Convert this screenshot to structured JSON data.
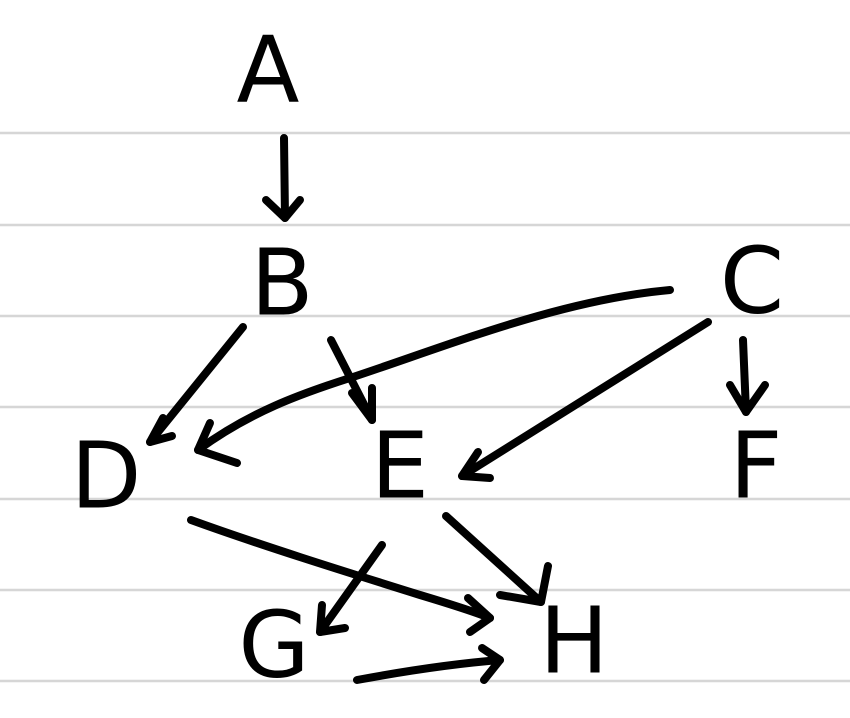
{
  "diagram": {
    "nodes": [
      {
        "id": "A",
        "label": "A"
      },
      {
        "id": "B",
        "label": "B"
      },
      {
        "id": "C",
        "label": "C"
      },
      {
        "id": "D",
        "label": "D"
      },
      {
        "id": "E",
        "label": "E"
      },
      {
        "id": "F",
        "label": "F"
      },
      {
        "id": "G",
        "label": "G"
      },
      {
        "id": "H",
        "label": "H"
      }
    ],
    "edges": [
      {
        "from": "A",
        "to": "B"
      },
      {
        "from": "B",
        "to": "D"
      },
      {
        "from": "B",
        "to": "E"
      },
      {
        "from": "C",
        "to": "D"
      },
      {
        "from": "C",
        "to": "E"
      },
      {
        "from": "C",
        "to": "F"
      },
      {
        "from": "D",
        "to": "H"
      },
      {
        "from": "E",
        "to": "G"
      },
      {
        "from": "E",
        "to": "H"
      },
      {
        "from": "G",
        "to": "H"
      }
    ]
  },
  "colors": {
    "ink": "#000000",
    "paper": "#ffffff",
    "ruled_line": "#d6d6d6"
  }
}
